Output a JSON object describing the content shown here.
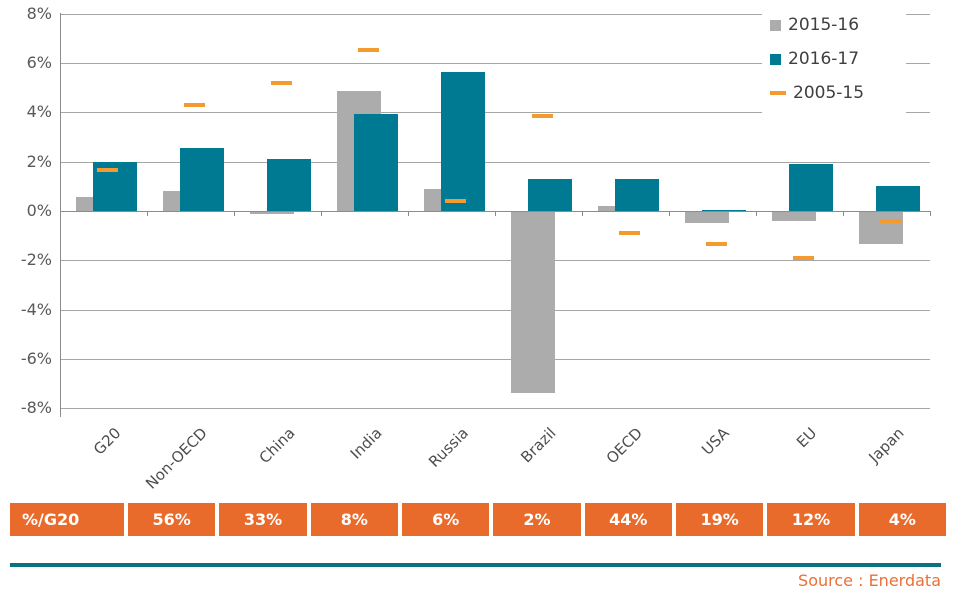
{
  "chart_data": {
    "type": "bar",
    "title": "",
    "xlabel": "",
    "ylabel": "",
    "categories": [
      "G20",
      "Non-OECD",
      "China",
      "India",
      "Russia",
      "Brazil",
      "OECD",
      "USA",
      "EU",
      "Japan"
    ],
    "series": [
      {
        "name": "2015-16",
        "render": "bar",
        "color": "#acacac",
        "values": [
          0.55,
          0.8,
          -0.1,
          4.85,
          0.9,
          -7.4,
          0.2,
          -0.5,
          -0.4,
          -1.35
        ]
      },
      {
        "name": "2016-17",
        "render": "bar",
        "color": "#007992",
        "values": [
          2.0,
          2.55,
          2.1,
          3.95,
          5.65,
          1.3,
          1.3,
          0.05,
          1.9,
          1.0
        ]
      },
      {
        "name": "2005-15",
        "render": "dash",
        "color": "#f49b2f",
        "values": [
          1.65,
          4.3,
          5.2,
          6.55,
          0.4,
          3.85,
          -0.9,
          -1.35,
          -1.9,
          -0.4
        ]
      }
    ],
    "ylim": [
      -8,
      8
    ],
    "ytick_step": 2,
    "yticks": [
      8,
      6,
      4,
      2,
      0,
      -2,
      -4,
      -6,
      -8
    ],
    "ytick_labels": [
      "8%",
      "6%",
      "4%",
      "2%",
      "0%",
      "-2%",
      "-4%",
      "-6%",
      "-8%"
    ],
    "grid": true,
    "legend_position": "top-right",
    "unit": "percent"
  },
  "share_table": {
    "header_label": "%/G20",
    "values": [
      "56%",
      "33%",
      "8%",
      "6%",
      "2%",
      "44%",
      "19%",
      "12%",
      "4%"
    ],
    "cell_color": "#e96b2c",
    "text_color": "#ffffff"
  },
  "footer": {
    "source": "Source : Enerdata",
    "source_color": "#ec6f35",
    "rule_color": "#0b7183"
  }
}
